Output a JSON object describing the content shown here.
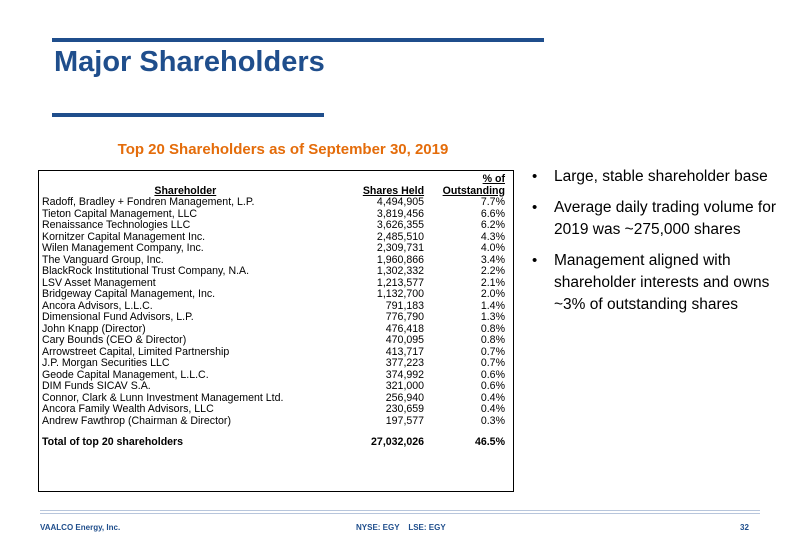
{
  "title": "Major Shareholders",
  "subtitle": "Top 20 Shareholders as of September 30, 2019",
  "table": {
    "header": {
      "shareholder": "Shareholder",
      "shares": "Shares Held",
      "pct_line1": "% of",
      "pct_line2": "Outstanding"
    },
    "rows": [
      {
        "name": "Radoff, Bradley + Fondren Management, L.P.",
        "shares": "4,494,905",
        "pct": "7.7%"
      },
      {
        "name": "Tieton Capital Management, LLC",
        "shares": "3,819,456",
        "pct": "6.6%"
      },
      {
        "name": "Renaissance Technologies LLC",
        "shares": "3,626,355",
        "pct": "6.2%"
      },
      {
        "name": "Kornitzer Capital Management Inc.",
        "shares": "2,485,510",
        "pct": "4.3%"
      },
      {
        "name": "Wilen Management Company, Inc.",
        "shares": "2,309,731",
        "pct": "4.0%"
      },
      {
        "name": "The Vanguard Group, Inc.",
        "shares": "1,960,866",
        "pct": "3.4%"
      },
      {
        "name": "BlackRock Institutional Trust Company, N.A.",
        "shares": "1,302,332",
        "pct": "2.2%"
      },
      {
        "name": "LSV Asset Management",
        "shares": "1,213,577",
        "pct": "2.1%"
      },
      {
        "name": "Bridgeway Capital Management, Inc.",
        "shares": "1,132,700",
        "pct": "2.0%"
      },
      {
        "name": "Ancora Advisors, L.L.C.",
        "shares": "791,183",
        "pct": "1.4%"
      },
      {
        "name": "Dimensional Fund Advisors, L.P.",
        "shares": "776,790",
        "pct": "1.3%"
      },
      {
        "name": "John Knapp (Director)",
        "shares": "476,418",
        "pct": "0.8%"
      },
      {
        "name": "Cary Bounds (CEO & Director)",
        "shares": "470,095",
        "pct": "0.8%"
      },
      {
        "name": "Arrowstreet Capital, Limited Partnership",
        "shares": "413,717",
        "pct": "0.7%"
      },
      {
        "name": "J.P. Morgan Securities LLC",
        "shares": "377,223",
        "pct": "0.7%"
      },
      {
        "name": "Geode Capital Management, L.L.C.",
        "shares": "374,992",
        "pct": "0.6%"
      },
      {
        "name": "DIM Funds SICAV S.A.",
        "shares": "321,000",
        "pct": "0.6%"
      },
      {
        "name": "Connor, Clark & Lunn Investment Management Ltd.",
        "shares": "256,940",
        "pct": "0.4%"
      },
      {
        "name": "Ancora Family Wealth Advisors, LLC",
        "shares": "230,659",
        "pct": "0.4%"
      },
      {
        "name": "Andrew Fawthrop (Chairman & Director)",
        "shares": "197,577",
        "pct": "0.3%"
      }
    ],
    "total": {
      "name": "Total of top 20 shareholders",
      "shares": "27,032,026",
      "pct": "46.5%"
    }
  },
  "bullets": [
    "Large, stable shareholder base",
    "Average daily trading volume for 2019 was ~275,000 shares",
    "Management aligned with shareholder interests and owns ~3% of outstanding shares"
  ],
  "footer": {
    "company": "VAALCO Energy, Inc.",
    "ticker": "NYSE: EGY    LSE: EGY",
    "page": "32"
  },
  "colors": {
    "title": "#1f4e8c",
    "subtitle": "#e46c0a"
  }
}
